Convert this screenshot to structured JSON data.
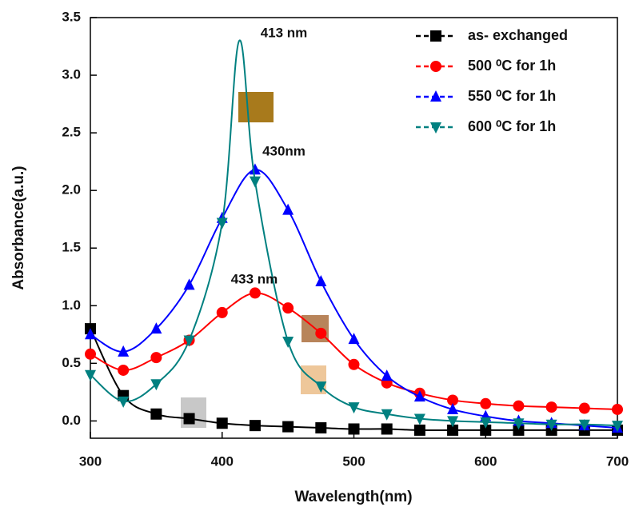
{
  "chart_data": {
    "type": "line",
    "x_label": "Wavelength(nm)",
    "y_label": "Absorbance(a.u.)",
    "xlim": [
      300,
      700
    ],
    "xticks": [
      300,
      400,
      500,
      600,
      700
    ],
    "ylim": [
      -0.15,
      3.5
    ],
    "yticks": [
      {
        "value": 0,
        "label": "0.0"
      },
      0.5,
      {
        "value": 1,
        "label": "1.0"
      },
      1.5,
      {
        "value": 2,
        "label": "2.0"
      },
      2.5,
      {
        "value": 3,
        "label": "3.0"
      },
      3.5
    ],
    "annotations": [
      "413 nm",
      "430nm",
      "433 nm"
    ],
    "legend": "upper right",
    "series": [
      {
        "name": "as- exchanged",
        "color": "#000000",
        "marker": "square",
        "x": [
          300,
          325,
          350,
          375,
          400,
          425,
          450,
          475,
          500,
          525,
          550,
          575,
          600,
          625,
          650,
          675,
          700
        ],
        "values": [
          0.8,
          0.22,
          0.06,
          0.02,
          -0.02,
          -0.04,
          -0.05,
          -0.06,
          -0.07,
          -0.07,
          -0.08,
          -0.08,
          -0.08,
          -0.08,
          -0.08,
          -0.08,
          -0.08
        ]
      },
      {
        "name": "500 ⁰C for 1h",
        "color": "#ff0000",
        "marker": "circle",
        "x": [
          300,
          325,
          350,
          375,
          400,
          425,
          450,
          475,
          500,
          525,
          550,
          575,
          600,
          625,
          650,
          675,
          700
        ],
        "values": [
          0.58,
          0.44,
          0.55,
          0.7,
          0.94,
          1.11,
          0.98,
          0.76,
          0.49,
          0.33,
          0.24,
          0.18,
          0.15,
          0.13,
          0.12,
          0.11,
          0.1
        ]
      },
      {
        "name": "550 ⁰C for 1h",
        "color": "#0000ff",
        "marker": "triangle-up",
        "x": [
          300,
          325,
          350,
          375,
          400,
          425,
          450,
          475,
          500,
          525,
          550,
          575,
          600,
          625,
          650,
          675,
          700
        ],
        "values": [
          0.75,
          0.6,
          0.8,
          1.18,
          1.76,
          2.18,
          1.83,
          1.21,
          0.71,
          0.39,
          0.21,
          0.1,
          0.04,
          0.0,
          -0.02,
          -0.04,
          -0.06
        ]
      },
      {
        "name": "600 ⁰C for 1h",
        "color": "#008080",
        "marker": "triangle-down",
        "x": [
          300,
          325,
          350,
          375,
          400,
          413,
          425,
          450,
          475,
          500,
          525,
          550,
          575,
          600,
          625,
          650,
          675,
          700
        ],
        "values": [
          0.4,
          0.17,
          0.32,
          0.7,
          1.72,
          3.3,
          2.08,
          0.69,
          0.3,
          0.12,
          0.06,
          0.02,
          0.0,
          -0.01,
          -0.02,
          -0.03,
          -0.03,
          -0.04
        ]
      }
    ]
  }
}
